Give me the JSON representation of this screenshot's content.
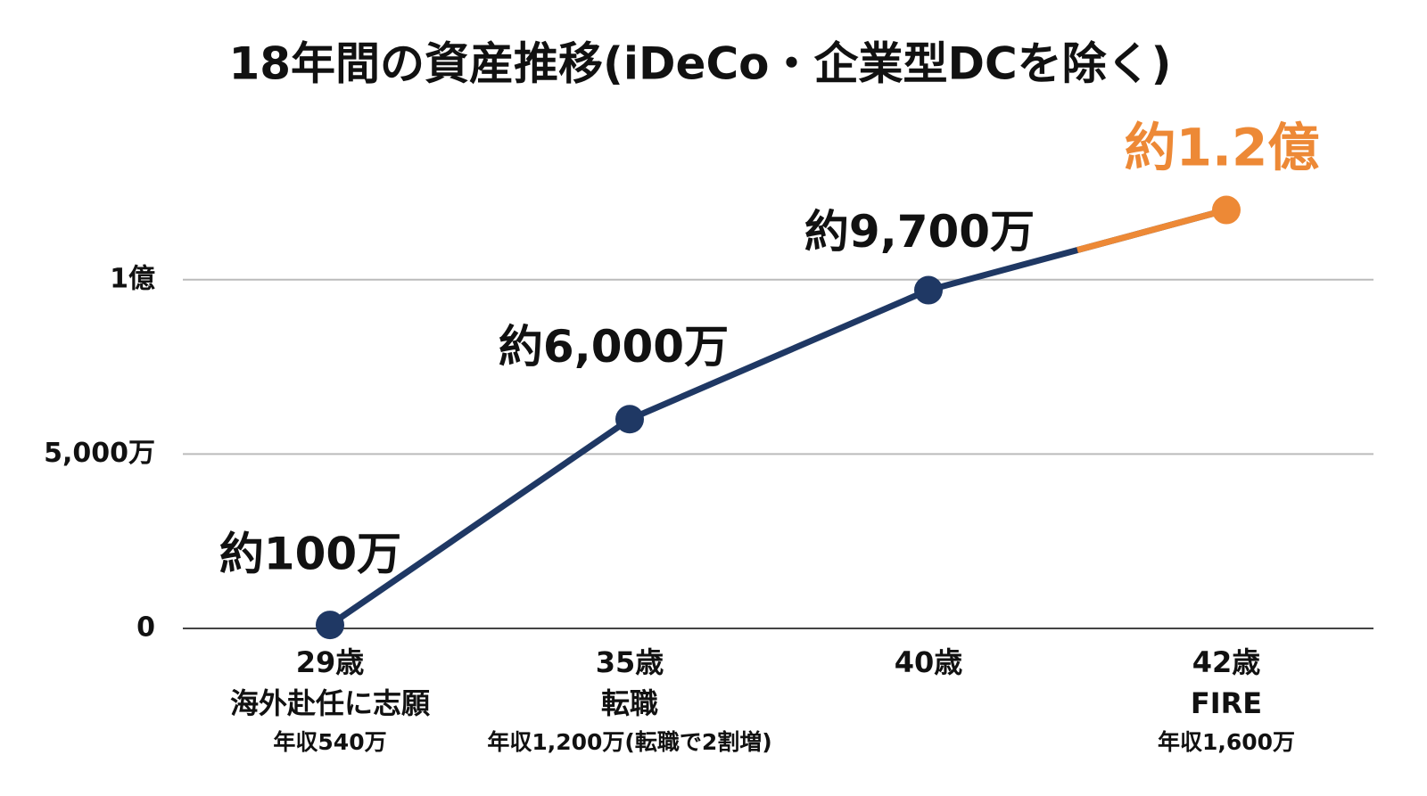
{
  "chart_data": {
    "type": "line",
    "title": "18年間の資産推移(iDeCo・企業型DCを除く)",
    "categories": [
      "29歳",
      "35歳",
      "40歳",
      "42歳"
    ],
    "category_sublabels": [
      "海外赴任に志願",
      "転職",
      null,
      "FIRE"
    ],
    "category_incomes": [
      "年収540万",
      "年収1,200万(転職で2割増)",
      null,
      "年収1,600万"
    ],
    "series": [
      {
        "color": "#1f3864",
        "highlight_color": "#ed8936",
        "values": [
          100,
          6000,
          9700,
          12000
        ],
        "value_labels": [
          "約100万",
          "約6,000万",
          "約9,700万",
          "約1.2億"
        ]
      }
    ],
    "ylim": [
      0,
      12500
    ],
    "yticks": [
      0,
      {
        "value": 5000,
        "label": "5,000万"
      },
      {
        "value": 10000,
        "label": "1億"
      }
    ],
    "grid": true
  }
}
